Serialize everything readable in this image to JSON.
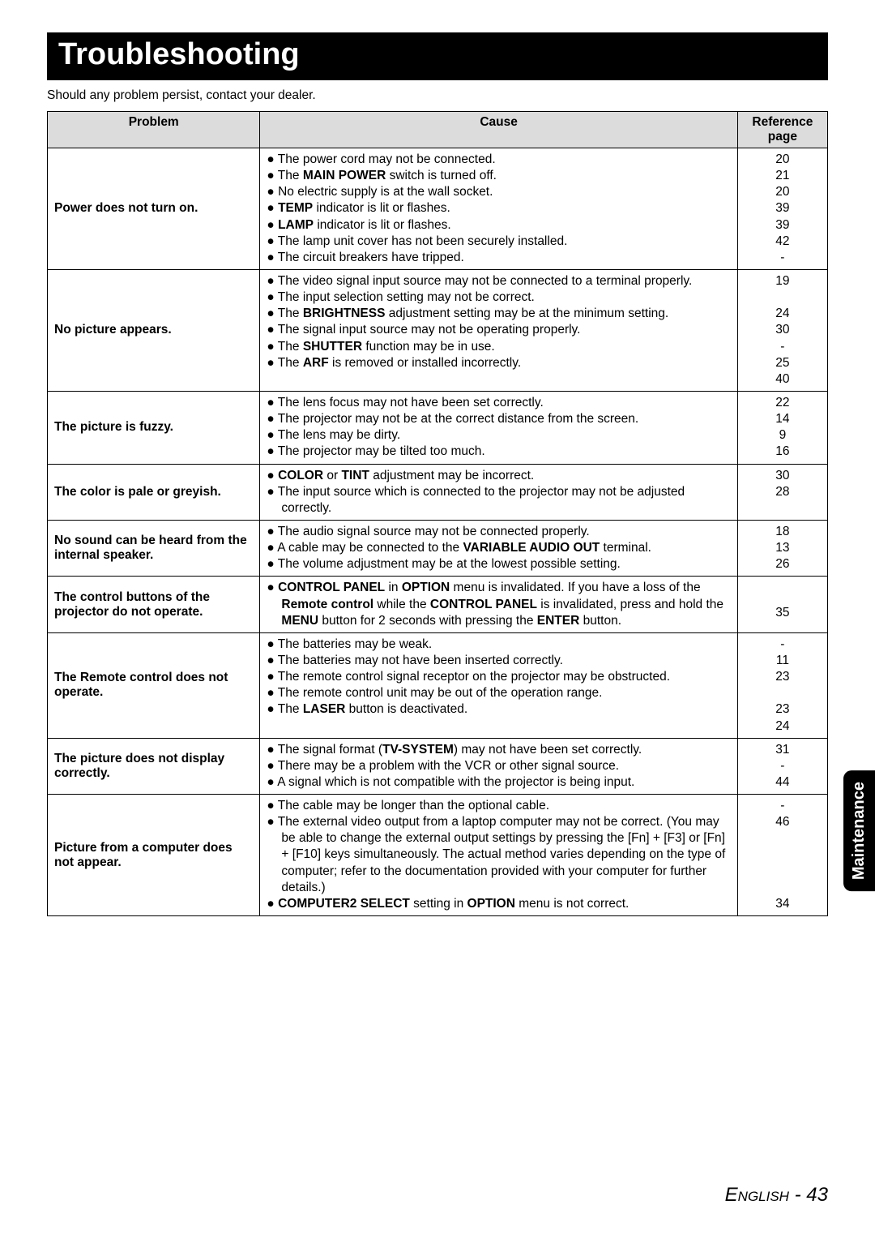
{
  "title": "Troubleshooting",
  "subtitle": "Should any problem persist, contact your dealer.",
  "side_tab": "Maintenance",
  "footer_lang": "English",
  "footer_page": "43",
  "columns": {
    "problem": "Problem",
    "cause": "Cause",
    "ref": "Reference page"
  },
  "rows": [
    {
      "problem": "Power does not turn on.",
      "causes": [
        "● The power cord may not be connected.",
        "● The <b>MAIN POWER</b> switch is turned off.",
        "● No electric supply is at the wall socket.",
        "● <b>TEMP</b> indicator is lit or flashes.",
        "● <b>LAMP</b> indicator is lit or flashes.",
        "● The lamp unit cover has not been securely installed.",
        "● The circuit breakers have tripped."
      ],
      "refs": [
        "20",
        "21",
        "20",
        "39",
        "39",
        "42",
        "-"
      ]
    },
    {
      "problem": "No picture appears.",
      "causes": [
        "● The video signal input source may not be connected to a terminal properly.",
        "● The input selection setting may not be correct.",
        "● The <b>BRIGHTNESS</b> adjustment setting may be at the minimum setting.",
        "● The signal input source may not be operating properly.",
        "● The <b>SHUTTER</b> function may be in use.",
        "● The <b>ARF</b> is removed or installed incorrectly."
      ],
      "refs": [
        "19",
        "",
        "24",
        "30",
        "-",
        "25",
        "40"
      ]
    },
    {
      "problem": "The picture is fuzzy.",
      "causes": [
        "● The lens focus may not have been set correctly.",
        "● The projector may not be at the correct distance from the screen.",
        "● The lens may be dirty.",
        "● The projector may be tilted too much."
      ],
      "refs": [
        "22",
        "14",
        "9",
        "16"
      ]
    },
    {
      "problem": "The color is pale or greyish.",
      "causes": [
        "● <b>COLOR</b> or <b>TINT</b> adjustment may be incorrect.",
        "● The input source which is connected to the projector may not be adjusted correctly."
      ],
      "refs": [
        "30",
        "28"
      ]
    },
    {
      "problem": "No sound can be heard from the internal speaker.",
      "causes": [
        "● The audio signal source may not be connected properly.",
        "● A cable may be connected to the <b>VARIABLE AUDIO OUT</b> terminal.",
        "● The volume adjustment may be at the lowest possible setting."
      ],
      "refs": [
        "18",
        "13",
        "26"
      ]
    },
    {
      "problem": "The control buttons of the projector do not operate.",
      "causes": [
        "● <b>CONTROL PANEL</b> in <b>OPTION</b> menu is invalidated. If you have a loss of the <b>Remote control</b> while the <b>CONTROL PANEL</b> is invalidated, press and hold the <b>MENU</b> button for 2 seconds with pressing the <b>ENTER</b> button."
      ],
      "refs": [
        "",
        "35"
      ],
      "ref_valign": "middle"
    },
    {
      "problem": "The Remote control does not operate.",
      "causes": [
        "● The batteries may be weak.",
        "● The batteries may not have been inserted correctly.",
        "● The remote control signal receptor on the projector may be obstructed.",
        "● The remote control unit may be out of the operation range.",
        "● The <b>LASER</b> button is deactivated."
      ],
      "refs": [
        "-",
        "11",
        "23",
        "",
        "23",
        "24"
      ]
    },
    {
      "problem": "The picture does not display correctly.",
      "causes": [
        "● The signal format (<b>TV-SYSTEM</b>) may not have been set correctly.",
        "● There may be a problem with the VCR or other signal source.",
        "● A signal which is not compatible with the projector is being input."
      ],
      "refs": [
        "31",
        "-",
        "44"
      ]
    },
    {
      "problem": "Picture from a computer does not appear.",
      "causes": [
        "● The cable may be longer than the optional cable.",
        "● The external video output from a laptop computer may not be correct. (You may be able to change the external output settings by pressing the [Fn] + [F3] or [Fn] + [F10] keys simultaneously. The actual method varies depending on the type of computer; refer to the documentation provided with your computer for further details.)",
        "● <b>COMPUTER2 SELECT</b> setting in <b>OPTION</b> menu is not correct."
      ],
      "refs": [
        "-",
        "46",
        "",
        "",
        "",
        "",
        "34"
      ]
    }
  ],
  "colors": {
    "header_bg": "#dcdcdc",
    "border": "#000000",
    "title_bg": "#000000"
  }
}
